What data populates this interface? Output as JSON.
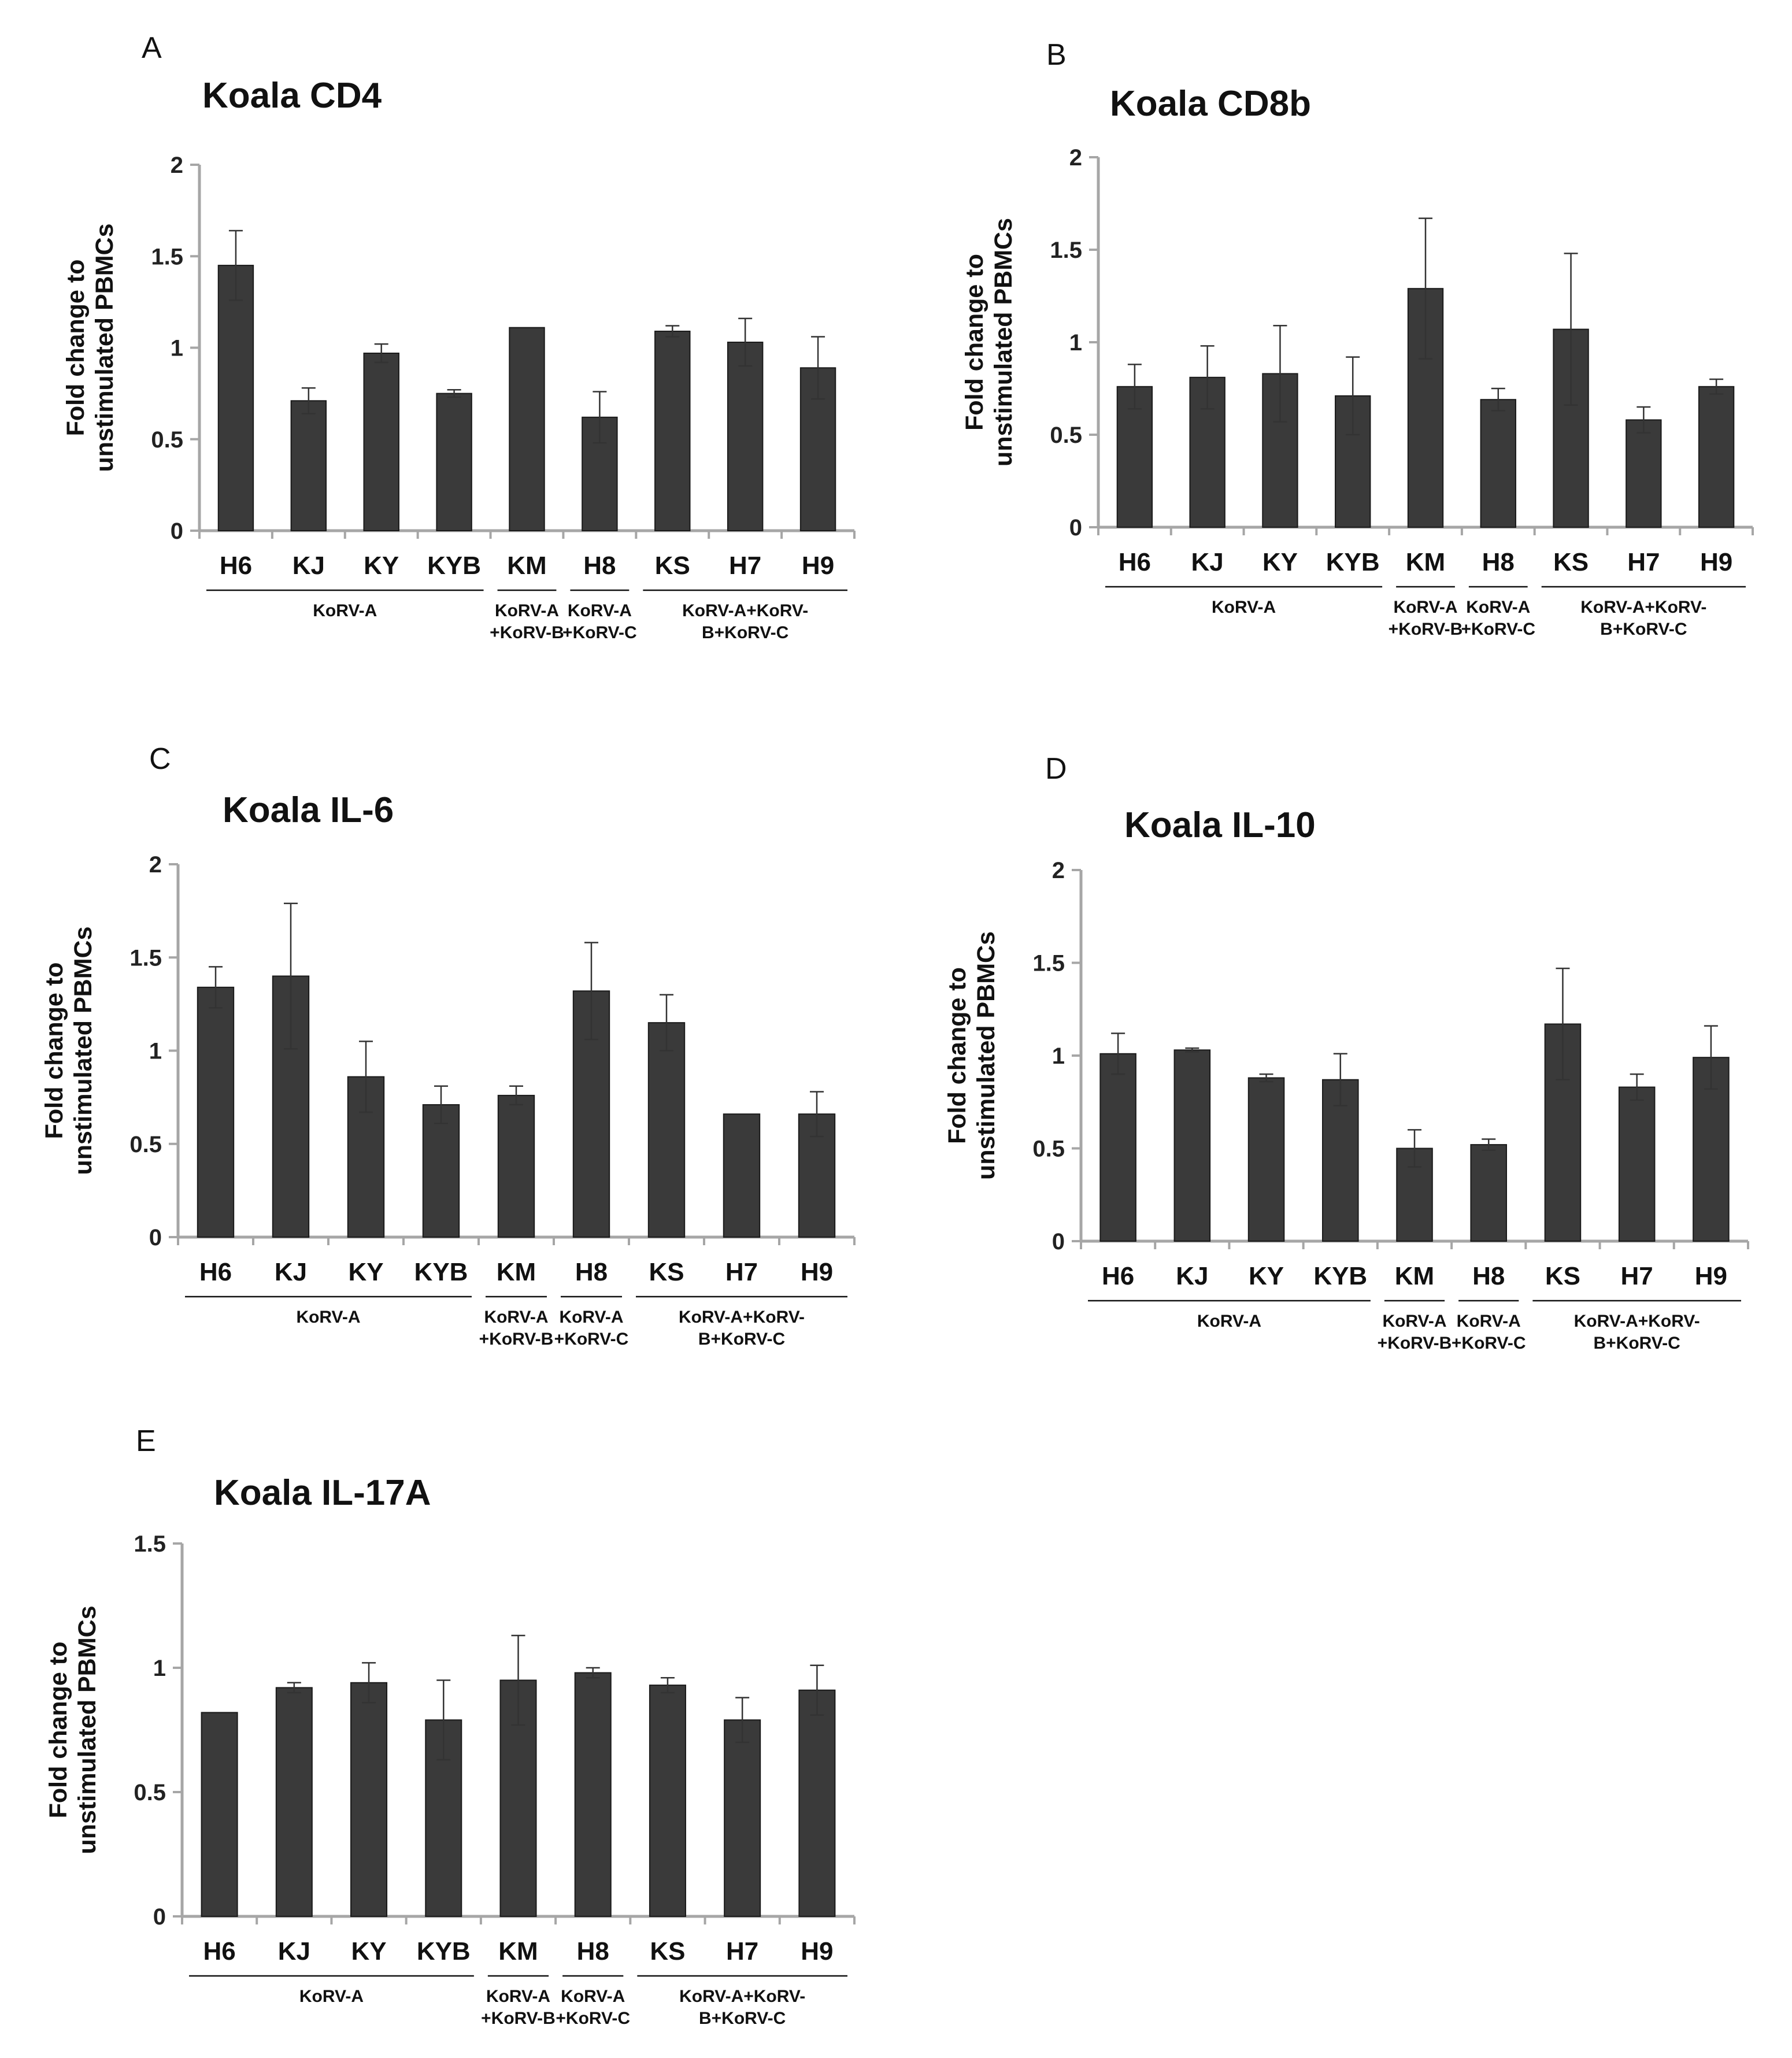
{
  "chart_data": [
    {
      "panel": "A",
      "type": "bar",
      "title": "Koala CD4",
      "ylabel": [
        "Fold change to",
        "unstimulated PBMCs"
      ],
      "ylim": [
        0,
        2
      ],
      "yticks": [
        "0",
        "0.5",
        "1",
        "1.5",
        "2"
      ],
      "categories": [
        "H6",
        "KJ",
        "KY",
        "KYB",
        "KM",
        "H8",
        "KS",
        "H7",
        "H9"
      ],
      "values": [
        1.45,
        0.71,
        0.97,
        0.75,
        1.11,
        0.62,
        1.09,
        1.03,
        0.89
      ],
      "errors": [
        0.19,
        0.07,
        0.05,
        0.02,
        0.0,
        0.14,
        0.03,
        0.13,
        0.17
      ],
      "groups": [
        {
          "lines": [
            "KoRV-A"
          ],
          "start": 0,
          "end": 3
        },
        {
          "lines": [
            "KoRV-A",
            "+KoRV-B"
          ],
          "start": 4,
          "end": 4
        },
        {
          "lines": [
            "KoRV-A",
            "+KoRV-C"
          ],
          "start": 5,
          "end": 5
        },
        {
          "lines": [
            "KoRV-A+KoRV-",
            "B+KoRV-C"
          ],
          "start": 6,
          "end": 8
        }
      ]
    },
    {
      "panel": "B",
      "type": "bar",
      "title": "Koala CD8b",
      "ylabel": [
        "Fold change to",
        "unstimulated PBMCs"
      ],
      "ylim": [
        0,
        2
      ],
      "yticks": [
        "0",
        "0.5",
        "1",
        "1.5",
        "2"
      ],
      "categories": [
        "H6",
        "KJ",
        "KY",
        "KYB",
        "KM",
        "H8",
        "KS",
        "H7",
        "H9"
      ],
      "values": [
        0.76,
        0.81,
        0.83,
        0.71,
        1.29,
        0.69,
        1.07,
        0.58,
        0.76
      ],
      "errors": [
        0.12,
        0.17,
        0.26,
        0.21,
        0.38,
        0.06,
        0.41,
        0.07,
        0.04
      ],
      "groups": [
        {
          "lines": [
            "KoRV-A"
          ],
          "start": 0,
          "end": 3
        },
        {
          "lines": [
            "KoRV-A",
            "+KoRV-B"
          ],
          "start": 4,
          "end": 4
        },
        {
          "lines": [
            "KoRV-A",
            "+KoRV-C"
          ],
          "start": 5,
          "end": 5
        },
        {
          "lines": [
            "KoRV-A+KoRV-",
            "B+KoRV-C"
          ],
          "start": 6,
          "end": 8
        }
      ]
    },
    {
      "panel": "C",
      "type": "bar",
      "title": "Koala IL-6",
      "ylabel": [
        "Fold change to",
        "unstimulated PBMCs"
      ],
      "ylim": [
        0,
        2
      ],
      "yticks": [
        "0",
        "0.5",
        "1",
        "1.5",
        "2"
      ],
      "categories": [
        "H6",
        "KJ",
        "KY",
        "KYB",
        "KM",
        "H8",
        "KS",
        "H7",
        "H9"
      ],
      "values": [
        1.34,
        1.4,
        0.86,
        0.71,
        0.76,
        1.32,
        1.15,
        0.66,
        0.66
      ],
      "errors": [
        0.11,
        0.39,
        0.19,
        0.1,
        0.05,
        0.26,
        0.15,
        0.0,
        0.12
      ],
      "groups": [
        {
          "lines": [
            "KoRV-A"
          ],
          "start": 0,
          "end": 3
        },
        {
          "lines": [
            "KoRV-A",
            "+KoRV-B"
          ],
          "start": 4,
          "end": 4
        },
        {
          "lines": [
            "KoRV-A",
            "+KoRV-C"
          ],
          "start": 5,
          "end": 5
        },
        {
          "lines": [
            "KoRV-A+KoRV-",
            "B+KoRV-C"
          ],
          "start": 6,
          "end": 8
        }
      ]
    },
    {
      "panel": "D",
      "type": "bar",
      "title": "Koala IL-10",
      "ylabel": [
        "Fold change to",
        "unstimulated PBMCs"
      ],
      "ylim": [
        0,
        2
      ],
      "yticks": [
        "0",
        "0.5",
        "1",
        "1.5",
        "2"
      ],
      "categories": [
        "H6",
        "KJ",
        "KY",
        "KYB",
        "KM",
        "H8",
        "KS",
        "H7",
        "H9"
      ],
      "values": [
        1.01,
        1.03,
        0.88,
        0.87,
        0.5,
        0.52,
        1.17,
        0.83,
        0.99
      ],
      "errors": [
        0.11,
        0.01,
        0.02,
        0.14,
        0.1,
        0.03,
        0.3,
        0.07,
        0.17
      ],
      "groups": [
        {
          "lines": [
            "KoRV-A"
          ],
          "start": 0,
          "end": 3
        },
        {
          "lines": [
            "KoRV-A",
            "+KoRV-B"
          ],
          "start": 4,
          "end": 4
        },
        {
          "lines": [
            "KoRV-A",
            "+KoRV-C"
          ],
          "start": 5,
          "end": 5
        },
        {
          "lines": [
            "KoRV-A+KoRV-",
            "B+KoRV-C"
          ],
          "start": 6,
          "end": 8
        }
      ]
    },
    {
      "panel": "E",
      "type": "bar",
      "title": "Koala IL-17A",
      "ylabel": [
        "Fold change to",
        "unstimulated PBMCs"
      ],
      "ylim": [
        0,
        1.5
      ],
      "yticks": [
        "0",
        "0.5",
        "1",
        "1.5"
      ],
      "categories": [
        "H6",
        "KJ",
        "KY",
        "KYB",
        "KM",
        "H8",
        "KS",
        "H7",
        "H9"
      ],
      "values": [
        0.82,
        0.92,
        0.94,
        0.79,
        0.95,
        0.98,
        0.93,
        0.79,
        0.91
      ],
      "errors": [
        0.0,
        0.02,
        0.08,
        0.16,
        0.18,
        0.02,
        0.03,
        0.09,
        0.1
      ],
      "groups": [
        {
          "lines": [
            "KoRV-A"
          ],
          "start": 0,
          "end": 3
        },
        {
          "lines": [
            "KoRV-A",
            "+KoRV-B"
          ],
          "start": 4,
          "end": 4
        },
        {
          "lines": [
            "KoRV-A",
            "+KoRV-C"
          ],
          "start": 5,
          "end": 5
        },
        {
          "lines": [
            "KoRV-A+KoRV-",
            "B+KoRV-C"
          ],
          "start": 6,
          "end": 8
        }
      ]
    }
  ]
}
